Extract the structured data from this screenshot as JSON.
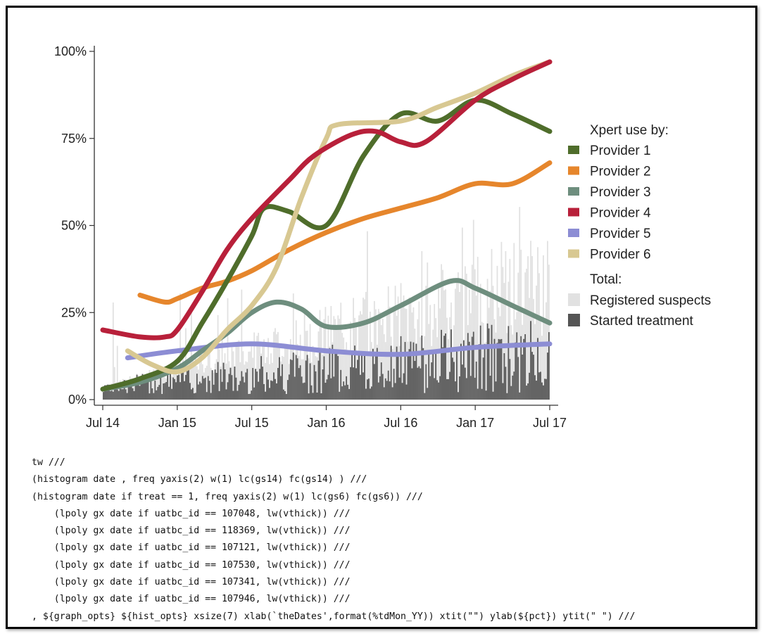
{
  "chart_data": {
    "type": "line",
    "title": "",
    "xlabel": "",
    "ylabel": "",
    "x_ticks": [
      "Jul 14",
      "Jan 15",
      "Jul 15",
      "Jan 16",
      "Jul 16",
      "Jan 17",
      "Jul 17"
    ],
    "y_ticks": [
      "0%",
      "25%",
      "50%",
      "75%",
      "100%"
    ],
    "ylim": [
      0,
      100
    ],
    "legend": {
      "placement": "right",
      "line_title": "Xpert use by:",
      "bar_title": "Total:"
    },
    "series": [
      {
        "name": "Provider 1",
        "color": "#4f6d2b",
        "x": [
          "Jul 14",
          "Oct 14",
          "Jan 15",
          "Mar 15",
          "May 15",
          "Jul 15",
          "Aug 15",
          "Oct 15",
          "Jan 16",
          "Apr 16",
          "Jul 16",
          "Oct 16",
          "Jan 17",
          "Apr 17",
          "Jul 17"
        ],
        "y": [
          3,
          6,
          11,
          22,
          34,
          47,
          55,
          54,
          50,
          70,
          82,
          80,
          86,
          82,
          77
        ]
      },
      {
        "name": "Provider 2",
        "color": "#e6862c",
        "x": [
          "Oct 14",
          "Dec 14",
          "Jan 15",
          "Mar 15",
          "May 15",
          "Jul 15",
          "Oct 15",
          "Jan 16",
          "Apr 16",
          "Jul 16",
          "Oct 16",
          "Jan 17",
          "Apr 17",
          "Jul 17"
        ],
        "y": [
          30,
          28,
          29,
          32,
          34,
          37,
          43,
          48,
          52,
          55,
          58,
          62,
          62,
          68
        ]
      },
      {
        "name": "Provider 3",
        "color": "#6e8e7e",
        "x": [
          "Jul 14",
          "Oct 14",
          "Jan 15",
          "Mar 15",
          "May 15",
          "Jul 15",
          "Sep 15",
          "Nov 15",
          "Jan 16",
          "Apr 16",
          "Jul 16",
          "Nov 16",
          "Jan 17",
          "Apr 17",
          "Jul 17"
        ],
        "y": [
          3,
          5,
          9,
          14,
          19,
          25,
          28,
          26,
          21,
          22,
          27,
          34,
          32,
          27,
          22
        ]
      },
      {
        "name": "Provider 4",
        "color": "#b8203a",
        "x": [
          "Jul 14",
          "Oct 14",
          "Dec 14",
          "Jan 15",
          "Mar 15",
          "May 15",
          "Jul 15",
          "Oct 15",
          "Dec 15",
          "Mar 16",
          "May 16",
          "Jul 16",
          "Sep 16",
          "Jan 17",
          "Apr 17",
          "Jul 17"
        ],
        "y": [
          20,
          18,
          18,
          20,
          31,
          43,
          52,
          63,
          70,
          76,
          77,
          74,
          74,
          86,
          92,
          97
        ]
      },
      {
        "name": "Provider 5",
        "color": "#8c8dd4",
        "x": [
          "Sep 14",
          "Jan 15",
          "Jul 15",
          "Jan 16",
          "Jul 16",
          "Jan 17",
          "Jul 17"
        ],
        "y": [
          12,
          14,
          16,
          14,
          13,
          15,
          16
        ]
      },
      {
        "name": "Provider 6",
        "color": "#d8c892",
        "x": [
          "Sep 14",
          "Nov 14",
          "Jan 15",
          "Mar 15",
          "May 15",
          "Jul 15",
          "Sep 15",
          "Nov 15",
          "Jan 16",
          "Feb 16",
          "Jul 16",
          "Oct 16",
          "Jan 17",
          "Apr 17",
          "Jul 17"
        ],
        "y": [
          14,
          10,
          8,
          12,
          20,
          27,
          38,
          58,
          75,
          79,
          80,
          84,
          88,
          93,
          97
        ]
      }
    ],
    "bar_series": [
      {
        "name": "Registered suspects",
        "color": "#e1e1e1"
      },
      {
        "name": "Started treatment",
        "color": "#555555"
      }
    ]
  },
  "code": {
    "lines": [
      "tw ///",
      "(histogram date , freq yaxis(2) w(1) lc(gs14) fc(gs14) ) ///",
      "(histogram date if treat == 1, freq yaxis(2) w(1) lc(gs6) fc(gs6)) ///",
      "    (lpoly gx date if uatbc_id == 107048, lw(vthick)) ///",
      "    (lpoly gx date if uatbc_id == 118369, lw(vthick)) ///",
      "    (lpoly gx date if uatbc_id == 107121, lw(vthick)) ///",
      "    (lpoly gx date if uatbc_id == 107530, lw(vthick)) ///",
      "    (lpoly gx date if uatbc_id == 107341, lw(vthick)) ///",
      "    (lpoly gx date if uatbc_id == 107946, lw(vthick)) ///",
      ", ${graph_opts} ${hist_opts} xsize(7) xlab(`theDates',format(%tdMon_YY)) xtit(\"\") ylab(${pct}) ytit(\" \") ///"
    ]
  }
}
